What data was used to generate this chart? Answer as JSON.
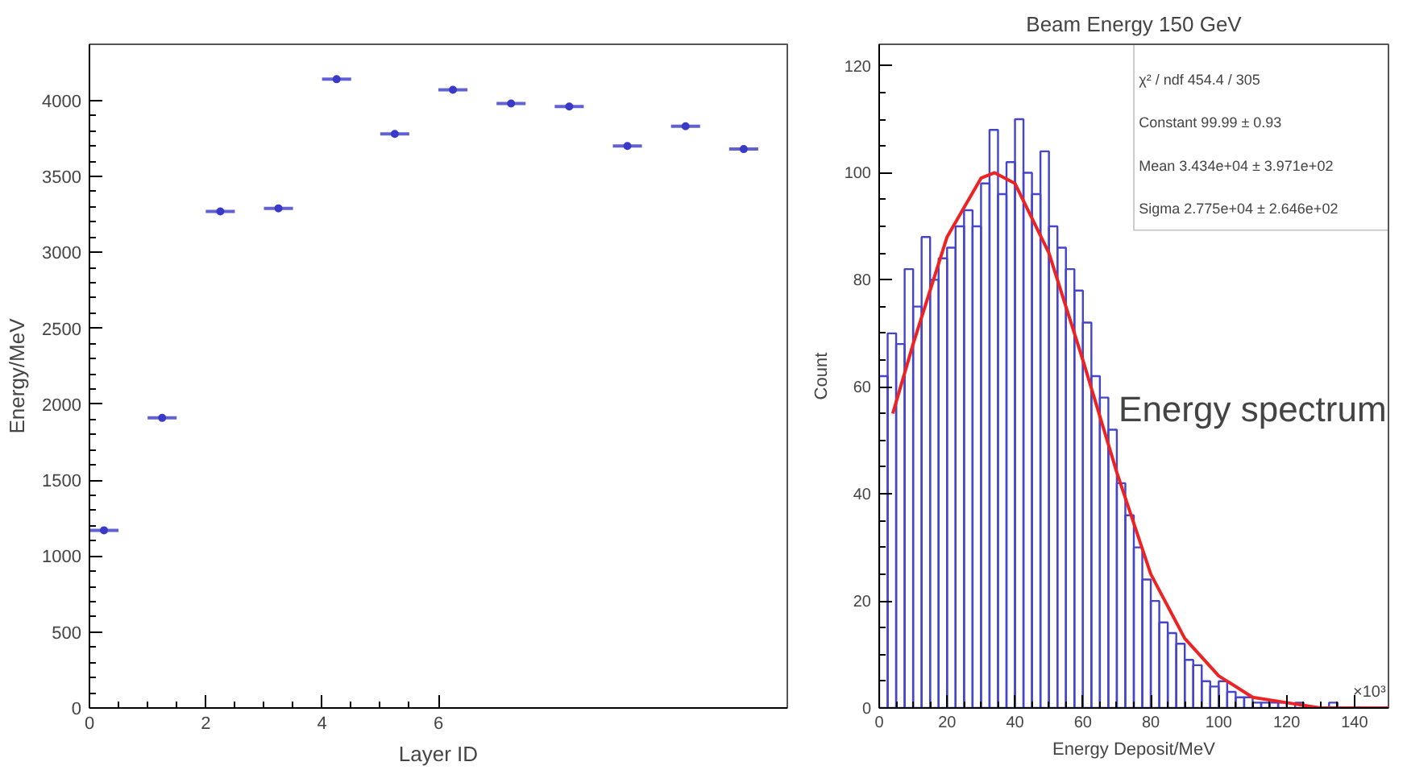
{
  "chart_data": [
    {
      "type": "scatter",
      "xlabel": "Layer ID",
      "ylabel": "Energy/MeV",
      "series": [
        {
          "color": "#3a3ac8",
          "x": [
            0.25,
            1.25,
            2.25,
            3.25,
            4.25,
            5.25,
            6.25,
            7.25,
            8.25,
            9.25,
            10.25,
            11.25
          ],
          "values": [
            1170,
            1910,
            3270,
            3290,
            4140,
            3780,
            4070,
            3980,
            3960,
            3700,
            3830,
            3680
          ],
          "xerrors": [
            0.25,
            0.25,
            0.25,
            0.25,
            0.25,
            0.25,
            0.25,
            0.25,
            0.25,
            0.25,
            0.25,
            0.25
          ],
          "errors": [
            15,
            15,
            15,
            15,
            15,
            15,
            15,
            15,
            15,
            15,
            15,
            15
          ]
        }
      ],
      "marker": "circle",
      "xlim": [
        0,
        12
      ],
      "ylim": [
        0,
        4370
      ],
      "xticks": [
        0,
        2,
        4,
        6
      ],
      "yticks": [
        0,
        500,
        1000,
        1500,
        2000,
        2500,
        3000,
        3500,
        4000
      ],
      "grid": false
    },
    {
      "type": "histogram",
      "title": "Beam Energy 150 GeV",
      "xlabel": "Energy Deposit/MeV",
      "ylabel": "Count",
      "bins": [
        0,
        2.5,
        5,
        7.5,
        10,
        12.5,
        15,
        17.5,
        20,
        22.5,
        25,
        27.5,
        30,
        32.5,
        35,
        37.5,
        40,
        42.5,
        45,
        47.5,
        50,
        52.5,
        55,
        57.5,
        60,
        62.5,
        65,
        67.5,
        70,
        72.5,
        75,
        77.5,
        80,
        82.5,
        85,
        87.5,
        90,
        92.5,
        95,
        97.5,
        100,
        102.5,
        105,
        107.5,
        110,
        112.5,
        115,
        117.5,
        120,
        122.5,
        125,
        127.5,
        130,
        132.5,
        135,
        137.5,
        140,
        142.5,
        145,
        147.5,
        150
      ],
      "series": [
        {
          "type": "histogram",
          "color": "#4444cc",
          "values": [
            62,
            70,
            68,
            82,
            75,
            88,
            80,
            84,
            86,
            90,
            93,
            90,
            98,
            108,
            96,
            102,
            110,
            100,
            96,
            104,
            90,
            86,
            82,
            78,
            72,
            62,
            58,
            52,
            42,
            36,
            30,
            24,
            20,
            16,
            14,
            12,
            9,
            8,
            5,
            4,
            5,
            3,
            2,
            2,
            1,
            1,
            1,
            1,
            0,
            1,
            0,
            0,
            0,
            1,
            0,
            0,
            0,
            0,
            0,
            0
          ]
        },
        {
          "type": "line",
          "color": "#ee2222",
          "x": [
            4,
            10,
            20,
            30,
            34,
            40,
            50,
            60,
            70,
            80,
            90,
            100,
            110,
            120,
            130,
            150
          ],
          "values": [
            55,
            68,
            88,
            99,
            100,
            98,
            85,
            65,
            44,
            25,
            13,
            6,
            2,
            1,
            0,
            0
          ]
        }
      ],
      "xlim": [
        0,
        150
      ],
      "ylim": [
        0,
        124
      ],
      "xticks": [
        0,
        20,
        40,
        60,
        80,
        100,
        120,
        140
      ],
      "yticks": [
        0,
        20,
        40,
        60,
        80,
        100,
        120
      ],
      "grid": false,
      "annotations": [
        "χ² / ndf   454.4 / 305",
        "Constant   99.99 ± 0.93",
        "Mean   3.434e+04 ± 3.971e+02",
        "Sigma   2.775e+04 ± 2.646e+02",
        "×10³",
        "Energy spectrum"
      ]
    }
  ]
}
